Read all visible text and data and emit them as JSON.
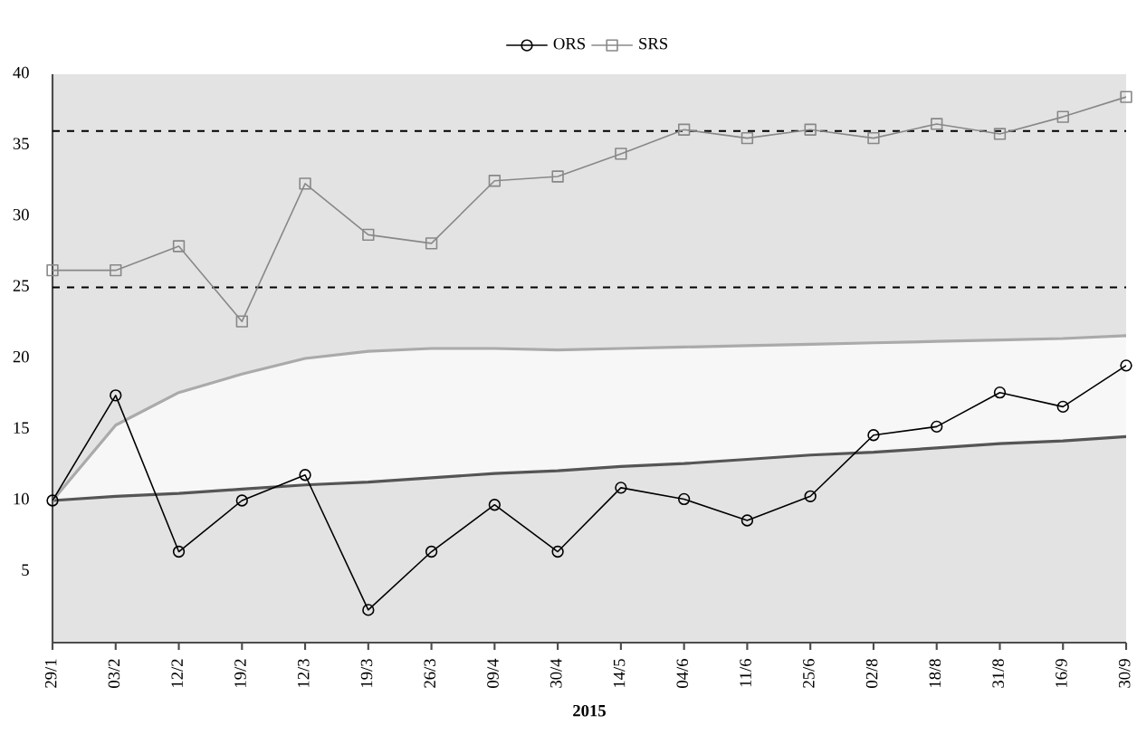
{
  "chart_data": {
    "type": "line",
    "xlabel": "2015",
    "categories": [
      "29/1",
      "03/2",
      "12/2",
      "19/2",
      "12/3",
      "19/3",
      "26/3",
      "09/4",
      "30/4",
      "14/5",
      "04/6",
      "11/6",
      "25/6",
      "02/8",
      "18/8",
      "31/8",
      "16/9",
      "30/9"
    ],
    "series": [
      {
        "name": "ORS",
        "color": "#000000",
        "marker": "circle",
        "values": [
          10,
          17.4,
          6.4,
          10,
          11.8,
          2.3,
          6.4,
          9.7,
          6.4,
          10.9,
          10.1,
          8.6,
          10.3,
          14.6,
          15.2,
          17.6,
          16.6,
          19.5
        ]
      },
      {
        "name": "SRS",
        "color": "#888888",
        "marker": "square",
        "values": [
          26.2,
          26.2,
          27.9,
          22.6,
          32.3,
          28.7,
          28.1,
          32.5,
          32.8,
          34.4,
          36.1,
          35.5,
          36.1,
          35.5,
          36.5,
          35.8,
          37.0,
          38.4
        ]
      },
      {
        "color": "#555555",
        "marker": "none",
        "values": [
          10.0,
          10.3,
          10.5,
          10.8,
          11.1,
          11.3,
          11.6,
          11.9,
          12.1,
          12.4,
          12.6,
          12.9,
          13.2,
          13.4,
          13.7,
          14.0,
          14.2,
          14.5
        ]
      },
      {
        "color": "#aaaaaa",
        "marker": "none",
        "values": [
          10,
          15.3,
          17.6,
          18.9,
          20.0,
          20.5,
          20.7,
          20.7,
          20.6,
          20.7,
          20.8,
          20.9,
          21.0,
          21.1,
          21.2,
          21.3,
          21.4,
          21.6
        ]
      }
    ],
    "ylim": [
      0,
      40
    ],
    "yticks": [
      5,
      10,
      15,
      20,
      25,
      30,
      35,
      40
    ],
    "ref_lines": [
      {
        "axis": "y",
        "value": 36,
        "color": "#000000",
        "line_style": "dashed"
      },
      {
        "axis": "y",
        "value": 25,
        "color": "#000000",
        "line_style": "dashed"
      }
    ],
    "legend": "top",
    "grid": false
  }
}
